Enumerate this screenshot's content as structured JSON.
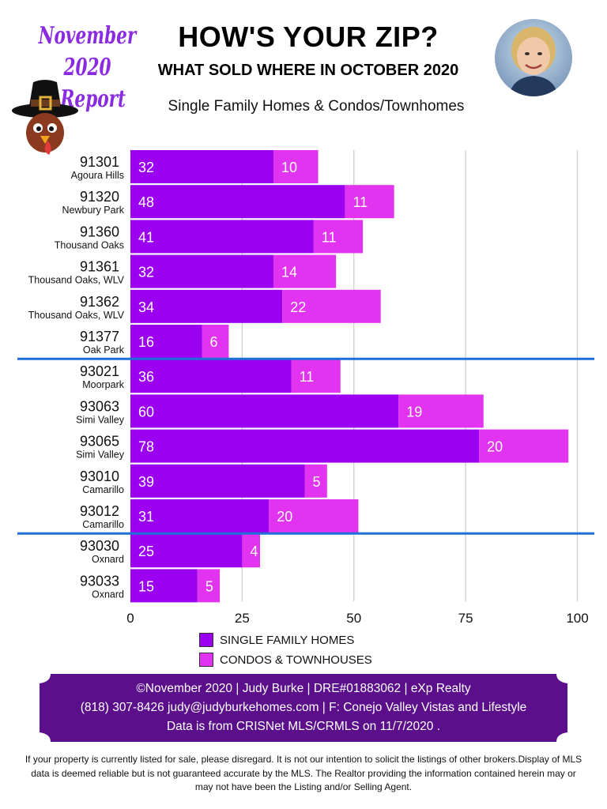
{
  "header": {
    "report_month": "November 2020",
    "report_word": "Report",
    "headline": "HOW'S YOUR ZIP?",
    "subheadline": "WHAT SOLD WHERE IN OCTOBER 2020",
    "property_types": "Single Family Homes & Condos/Townhomes"
  },
  "colors": {
    "report_purple": "#8a2be2",
    "single_family": "#9b00f0",
    "condos": "#e233f0",
    "divider": "#1f6fd8",
    "banner": "#5b0f8a"
  },
  "icons": {
    "turkey": "pilgrim-turkey-icon",
    "agent_photo": "agent-photo-avatar"
  },
  "chart_data": {
    "type": "bar",
    "orientation": "horizontal",
    "stacked": true,
    "categories": [
      {
        "zip": "91301",
        "city": "Agoura Hills"
      },
      {
        "zip": "91320",
        "city": "Newbury Park"
      },
      {
        "zip": "91360",
        "city": "Thousand Oaks"
      },
      {
        "zip": "91361",
        "city": "Thousand Oaks, WLV"
      },
      {
        "zip": "91362",
        "city": "Thousand Oaks, WLV"
      },
      {
        "zip": "91377",
        "city": "Oak Park"
      },
      {
        "zip": "93021",
        "city": "Moorpark"
      },
      {
        "zip": "93063",
        "city": "Simi Valley"
      },
      {
        "zip": "93065",
        "city": "Simi Valley"
      },
      {
        "zip": "93010",
        "city": "Camarillo"
      },
      {
        "zip": "93012",
        "city": "Camarillo"
      },
      {
        "zip": "93030",
        "city": "Oxnard"
      },
      {
        "zip": "93033",
        "city": "Oxnard"
      }
    ],
    "series": [
      {
        "name": "SINGLE FAMILY HOMES",
        "color": "#9b00f0",
        "values": [
          32,
          48,
          41,
          32,
          34,
          16,
          36,
          60,
          78,
          39,
          31,
          25,
          15
        ]
      },
      {
        "name": "CONDOS & TOWNHOUSES",
        "color": "#e233f0",
        "values": [
          10,
          11,
          11,
          14,
          22,
          6,
          11,
          19,
          20,
          5,
          20,
          4,
          5
        ]
      }
    ],
    "xlim": [
      0,
      100
    ],
    "xticks": [
      0,
      25,
      50,
      75,
      100
    ],
    "grid": true,
    "group_dividers_after": [
      "91377",
      "93012"
    ],
    "legend": "bottom-center"
  },
  "footer": {
    "line1": "©November 2020  |  Judy Burke  |  DRE#01883062  |  eXp Realty",
    "line2": "(818) 307-8426  judy@judyburkehomes.com | F: Conejo Valley Vistas and Lifestyle",
    "line3": "Data is from CRISNet MLS/CRMLS on 11/7/2020 ."
  },
  "disclaimer": "If your property is currently listed for sale, please disregard. It is not our intention to solicit the listings of other brokers.Display of MLS data is deemed reliable but is not guaranteed accurate by the MLS. The Realtor providing the information contained herein may or may not have been the Listing and/or Selling Agent."
}
